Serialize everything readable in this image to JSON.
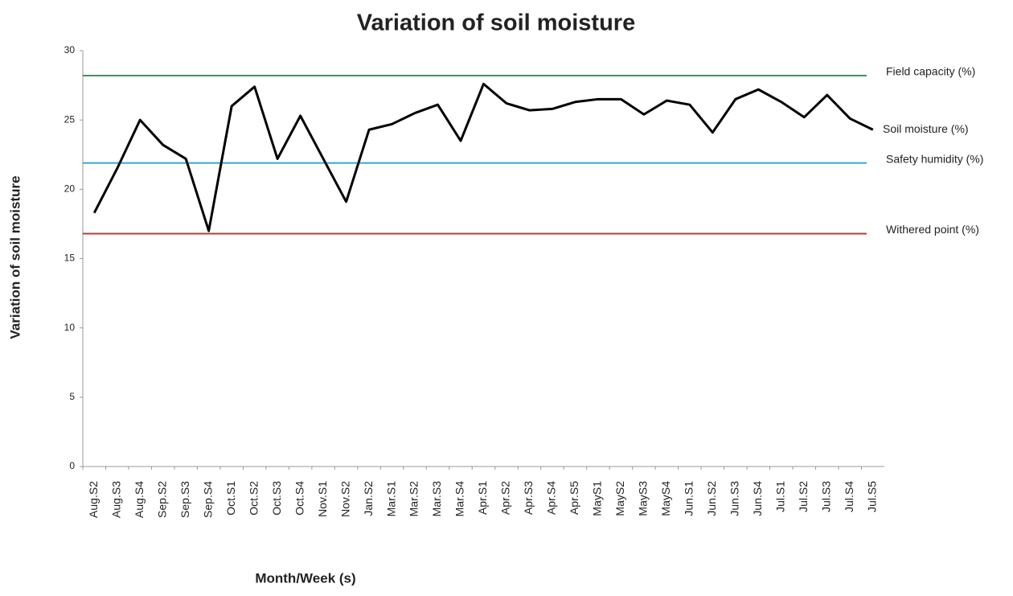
{
  "chart_data": {
    "type": "line",
    "title": "Variation of soil moisture",
    "xlabel": "Month/Week (s)",
    "ylabel": "Variation of soil moisture",
    "categories": [
      "Aug.S2",
      "Aug.S3",
      "Aug.S4",
      "Sep.S2",
      "Sep.S3",
      "Sep.S4",
      "Oct.S1",
      "Oct.S2",
      "Oct.S3",
      "Oct.S4",
      "Nov.S1",
      "Nov.S2",
      "Jan.S2",
      "Mar.S1",
      "Mar.S2",
      "Mar.S3",
      "Mar.S4",
      "Apr.S1",
      "Apr.S2",
      "Apr.S3",
      "Apr.S4",
      "Apr.S5",
      "MayS1",
      "MayS2",
      "MayS3",
      "MayS4",
      "Jun.S1",
      "Jun.S2",
      "Jun.S3",
      "Jun.S4",
      "Jul.S1",
      "Jul.S2",
      "Jul.S3",
      "Jul.S4",
      "Jul.S5"
    ],
    "series": [
      {
        "name": "Soil moisture (%)",
        "color": "#000000",
        "values": [
          18.3,
          21.5,
          25,
          23.2,
          22.2,
          17,
          26,
          27.4,
          22.2,
          25.3,
          22.2,
          19.1,
          24.3,
          24.7,
          25.5,
          26.1,
          23.5,
          27.6,
          26.2,
          25.7,
          25.8,
          26.3,
          26.5,
          26.5,
          25.4,
          26.4,
          26.1,
          24.1,
          26.5,
          27.2,
          26.3,
          25.2,
          26.8,
          25.1,
          24.3
        ]
      }
    ],
    "reference_lines": [
      {
        "name": "Field capacity (%)",
        "value": 28.2,
        "color": "#2e9b5a"
      },
      {
        "name": "Safety humidity (%)",
        "value": 21.9,
        "color": "#35a9d2"
      },
      {
        "name": "Withered point (%)",
        "value": 16.8,
        "color": "#c0392b"
      }
    ],
    "ylim": [
      0,
      30
    ],
    "yticks": [
      0,
      5,
      10,
      15,
      20,
      25,
      30
    ],
    "grid": false
  }
}
